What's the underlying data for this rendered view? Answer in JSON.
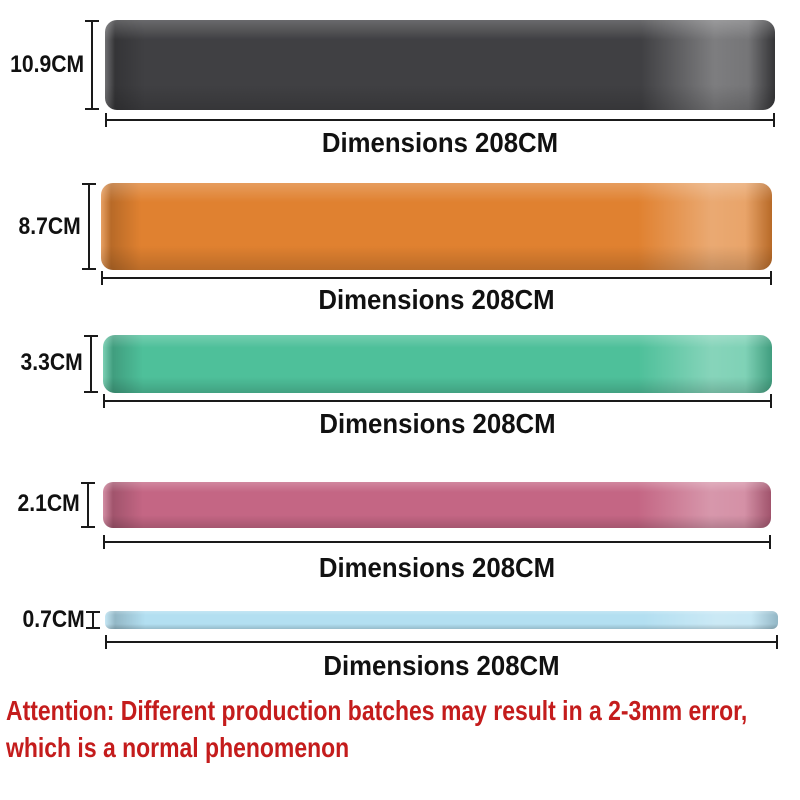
{
  "figure": {
    "measure_color": "#1a1a1a",
    "text_color": "#111111",
    "bands": [
      {
        "id": "black",
        "width_label": "10.9CM",
        "width_cm": 10.9,
        "length_label": "Dimensions 208CM",
        "length_cm": 208,
        "color": "#404043"
      },
      {
        "id": "orange",
        "width_label": "8.7CM",
        "width_cm": 8.7,
        "length_label": "Dimensions 208CM",
        "length_cm": 208,
        "color": "#e08130"
      },
      {
        "id": "green",
        "width_label": "3.3CM",
        "width_cm": 3.3,
        "length_label": "Dimensions 208CM",
        "length_cm": 208,
        "color": "#4ec09a"
      },
      {
        "id": "pink",
        "width_label": "2.1CM",
        "width_cm": 2.1,
        "length_label": "Dimensions 208CM",
        "length_cm": 208,
        "color": "#c46684"
      },
      {
        "id": "blue",
        "width_label": "0.7CM",
        "width_cm": 0.7,
        "length_label": "Dimensions 208CM",
        "length_cm": 208,
        "color": "#b3dff1"
      }
    ],
    "attention": {
      "lines": [
        "Attention: Different production batches may result in a 2-3mm error,",
        "which is a normal phenomenon"
      ],
      "color": "#c41c1c"
    }
  }
}
